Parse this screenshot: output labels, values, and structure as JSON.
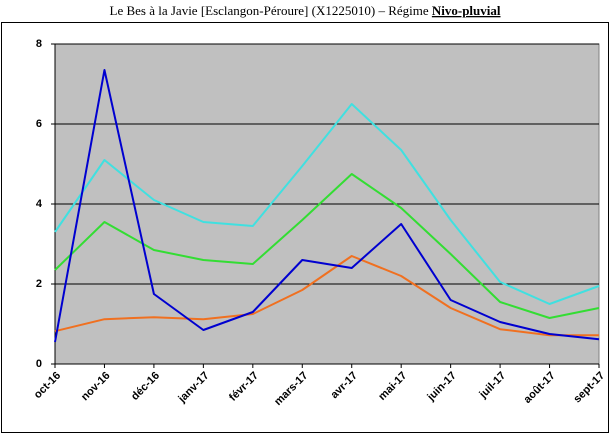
{
  "chart_data": {
    "type": "line",
    "title": "Le Bes à la Javie [Esclangon-Péroure] (X1225010) – Régime",
    "title_regime": "Nivo-pluvial",
    "categories": [
      "oct-16",
      "nov-16",
      "déc-16",
      "janv-17",
      "févr-17",
      "mars-17",
      "avr-17",
      "mai-17",
      "juin-17",
      "juil-17",
      "août-17",
      "sept-17"
    ],
    "series": [
      {
        "color": "#40e0e0",
        "values": [
          3.3,
          5.1,
          4.1,
          3.55,
          3.45,
          4.95,
          6.5,
          5.35,
          3.6,
          2.05,
          1.5,
          1.95
        ]
      },
      {
        "color": "#33dd33",
        "values": [
          2.35,
          3.55,
          2.85,
          2.6,
          2.5,
          3.6,
          4.75,
          3.9,
          2.75,
          1.55,
          1.15,
          1.4
        ]
      },
      {
        "color": "#f07020",
        "values": [
          0.82,
          1.12,
          1.17,
          1.12,
          1.25,
          1.85,
          2.7,
          2.2,
          1.4,
          0.87,
          0.72,
          0.72
        ]
      },
      {
        "color": "#0000d0",
        "values": [
          0.55,
          7.35,
          1.75,
          0.85,
          1.3,
          2.6,
          2.4,
          3.5,
          1.6,
          1.05,
          0.75,
          0.62
        ]
      }
    ],
    "ylim": [
      0,
      8
    ],
    "yticks": [
      0,
      2,
      4,
      6,
      8
    ],
    "grid": true,
    "plot_background": "#c0c0c0"
  }
}
